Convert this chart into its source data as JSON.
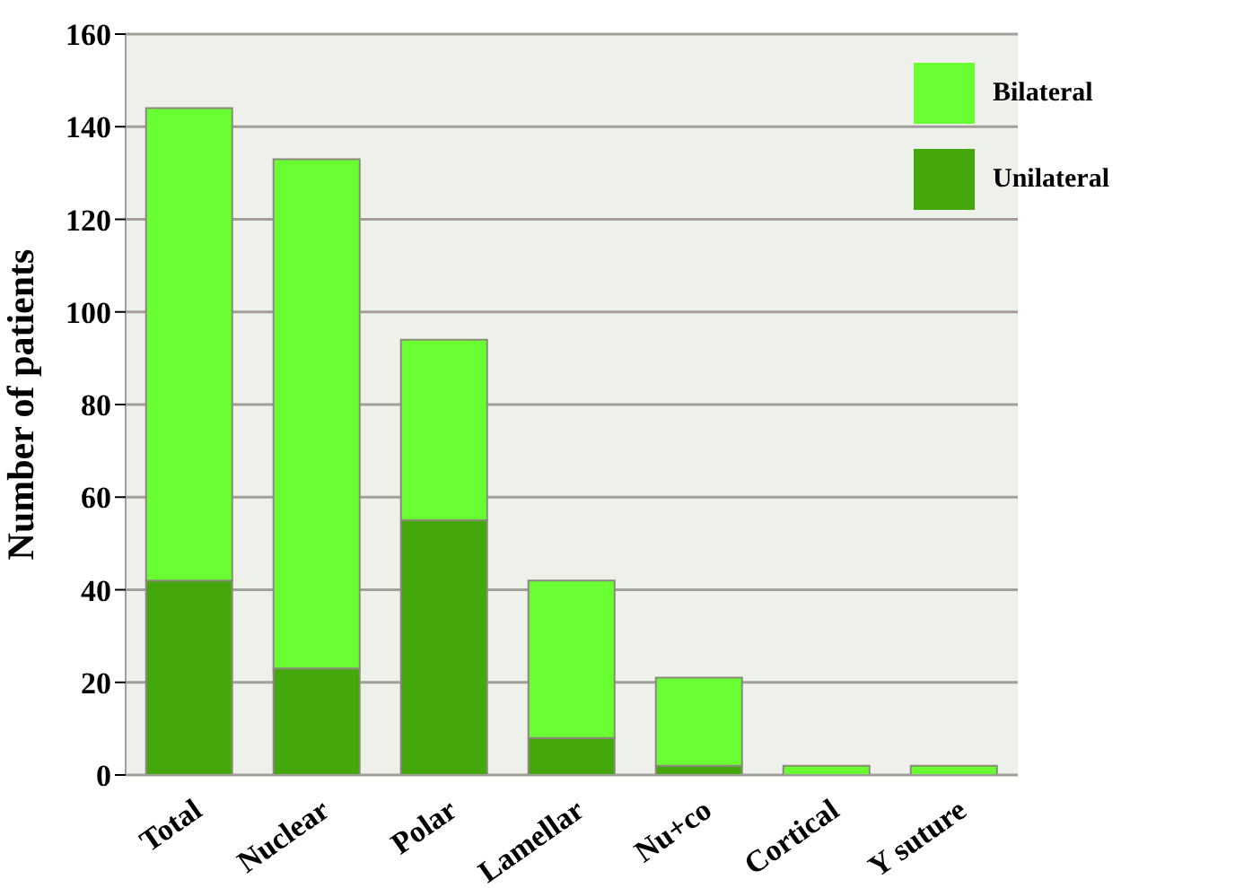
{
  "chart_data": {
    "type": "bar",
    "ylabel": "Number of patients",
    "categories": [
      "Total",
      "Nuclear",
      "Polar",
      "Lamellar",
      "Nu+co",
      "Cortical",
      "Y suture"
    ],
    "series": [
      {
        "name": "Unilateral",
        "color": "#44a80c",
        "values": [
          42,
          23,
          55,
          8,
          2,
          0,
          0
        ]
      },
      {
        "name": "Bilateral",
        "color": "#6aff33",
        "values": [
          102,
          110,
          39,
          34,
          19,
          2,
          2
        ]
      }
    ],
    "stacked": true,
    "ylim": [
      0,
      160
    ],
    "yticks": [
      0,
      20,
      40,
      60,
      80,
      100,
      120,
      140,
      160
    ],
    "grid": "y",
    "legend": "top right"
  }
}
